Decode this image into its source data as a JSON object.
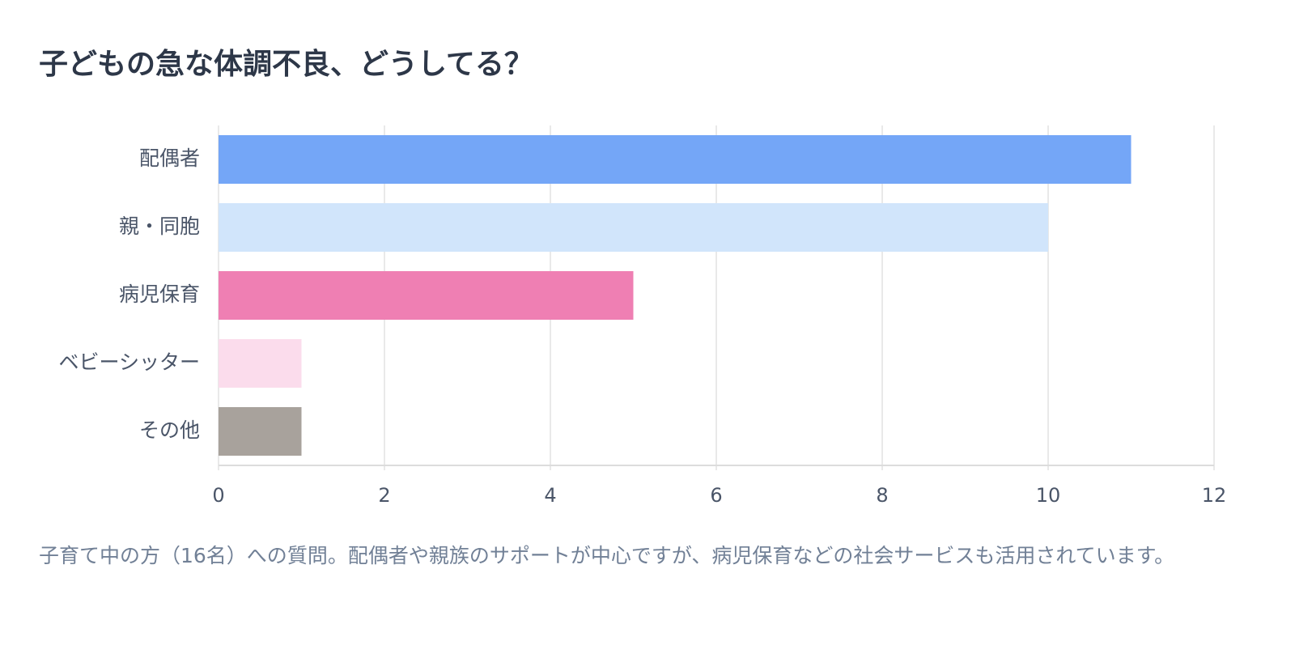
{
  "chart_data": {
    "type": "bar",
    "orientation": "horizontal",
    "title": "子どもの急な体調不良、どうしてる？",
    "categories": [
      "配偶者",
      "親・同胞",
      "病児保育",
      "ベビーシッター",
      "その他"
    ],
    "values": [
      11,
      10,
      5,
      1,
      1
    ],
    "colors": [
      "#74a6f7",
      "#d1e5fb",
      "#ef7fb3",
      "#fbdcec",
      "#a8a29c"
    ],
    "xlim": [
      0,
      12
    ],
    "xticks": [
      0,
      2,
      4,
      6,
      8,
      10,
      12
    ],
    "grid": true,
    "caption": "子育て中の方（16名）への質問。配偶者や親族のサポートが中心ですが、病児保育などの社会サービスも活用されています。"
  }
}
